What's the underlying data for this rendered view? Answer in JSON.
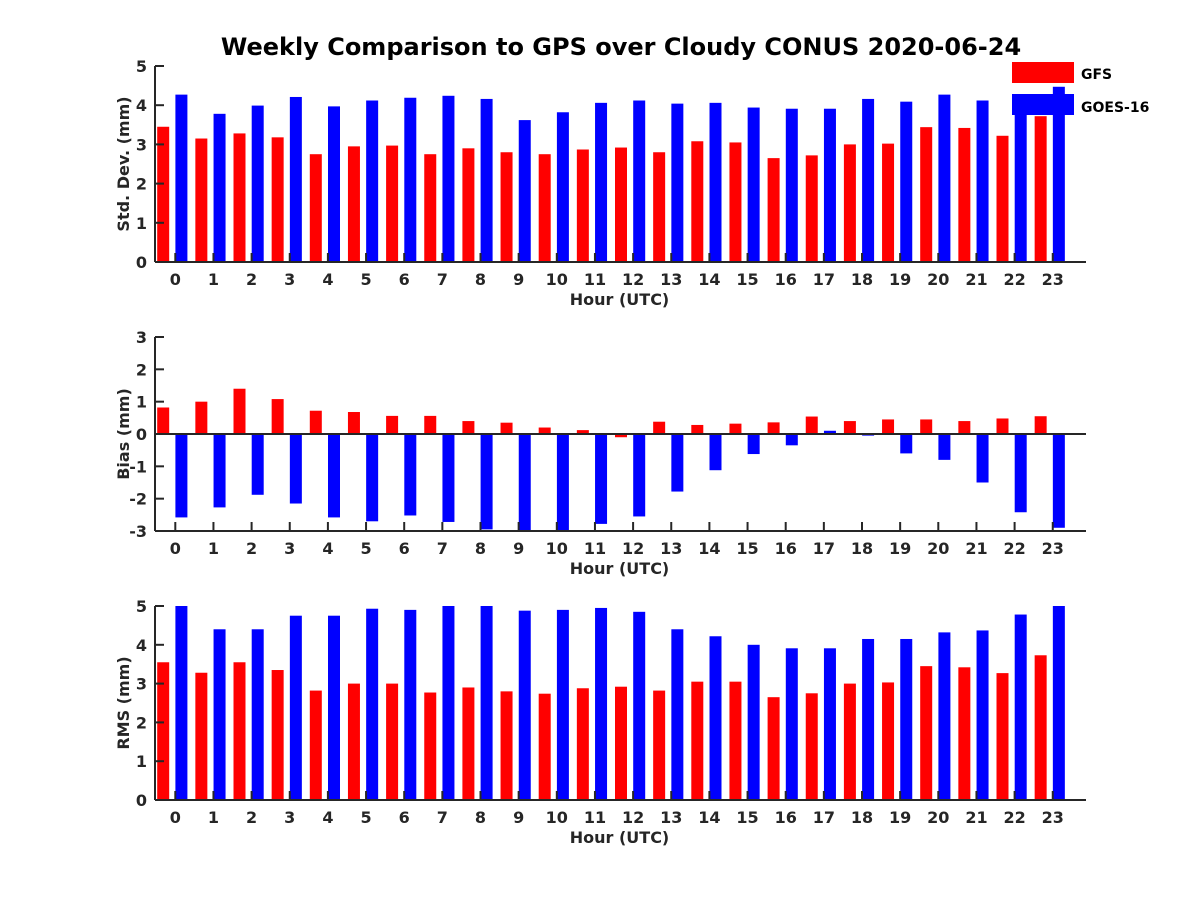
{
  "chart_data": {
    "title": "Weekly Comparison to GPS over Cloudy CONUS 2020-06-24",
    "colors": {
      "GFS": "#ff0000",
      "GOES-16": "#0000ff"
    },
    "legend": {
      "placement": "top-right",
      "entries": [
        "GFS",
        "GOES-16"
      ]
    },
    "grid": false,
    "panels": [
      {
        "type": "bar",
        "xlabel": "Hour (UTC)",
        "ylabel": "Std. Dev. (mm)",
        "ylim": [
          0,
          5
        ],
        "yticks": [
          0,
          1,
          2,
          3,
          4,
          5
        ],
        "categories": [
          "0",
          "1",
          "2",
          "3",
          "4",
          "5",
          "6",
          "7",
          "8",
          "9",
          "10",
          "11",
          "12",
          "13",
          "14",
          "15",
          "16",
          "17",
          "18",
          "19",
          "20",
          "21",
          "22",
          "23"
        ],
        "series": [
          {
            "name": "GFS",
            "values": [
              3.45,
              3.15,
              3.28,
              3.18,
              2.75,
              2.95,
              2.97,
              2.75,
              2.9,
              2.8,
              2.75,
              2.87,
              2.92,
              2.8,
              3.08,
              3.05,
              2.65,
              2.72,
              3.0,
              3.02,
              3.44,
              3.42,
              3.22,
              3.72
            ]
          },
          {
            "name": "GOES-16",
            "values": [
              4.27,
              3.78,
              3.99,
              4.21,
              3.97,
              4.12,
              4.19,
              4.24,
              4.16,
              3.62,
              3.82,
              4.06,
              4.12,
              4.04,
              4.06,
              3.94,
              3.91,
              3.91,
              4.16,
              4.09,
              4.27,
              4.12,
              4.08,
              4.47
            ]
          }
        ]
      },
      {
        "type": "bar",
        "xlabel": "Hour (UTC)",
        "ylabel": "Bias (mm)",
        "ylim": [
          -3,
          3
        ],
        "yticks": [
          -3,
          -2,
          -1,
          0,
          1,
          2,
          3
        ],
        "categories": [
          "0",
          "1",
          "2",
          "3",
          "4",
          "5",
          "6",
          "7",
          "8",
          "9",
          "10",
          "11",
          "12",
          "13",
          "14",
          "15",
          "16",
          "17",
          "18",
          "19",
          "20",
          "21",
          "22",
          "23"
        ],
        "series": [
          {
            "name": "GFS",
            "values": [
              0.82,
              1.0,
              1.4,
              1.08,
              0.72,
              0.68,
              0.56,
              0.56,
              0.4,
              0.35,
              0.2,
              0.12,
              -0.1,
              0.38,
              0.28,
              0.32,
              0.36,
              0.54,
              0.4,
              0.45,
              0.45,
              0.4,
              0.48,
              0.55
            ]
          },
          {
            "name": "GOES-16",
            "values": [
              -2.58,
              -2.27,
              -1.88,
              -2.15,
              -2.58,
              -2.7,
              -2.52,
              -2.72,
              -2.95,
              -3.0,
              -3.0,
              -2.78,
              -2.55,
              -1.78,
              -1.12,
              -0.62,
              -0.35,
              0.1,
              -0.05,
              -0.6,
              -0.8,
              -1.5,
              -2.42,
              -2.9
            ]
          }
        ]
      },
      {
        "type": "bar",
        "xlabel": "Hour (UTC)",
        "ylabel": "RMS (mm)",
        "ylim": [
          0,
          5
        ],
        "yticks": [
          0,
          1,
          2,
          3,
          4,
          5
        ],
        "categories": [
          "0",
          "1",
          "2",
          "3",
          "4",
          "5",
          "6",
          "7",
          "8",
          "9",
          "10",
          "11",
          "12",
          "13",
          "14",
          "15",
          "16",
          "17",
          "18",
          "19",
          "20",
          "21",
          "22",
          "23"
        ],
        "series": [
          {
            "name": "GFS",
            "values": [
              3.55,
              3.28,
              3.55,
              3.35,
              2.82,
              3.0,
              3.0,
              2.77,
              2.9,
              2.8,
              2.74,
              2.88,
              2.92,
              2.82,
              3.05,
              3.05,
              2.65,
              2.75,
              3.0,
              3.03,
              3.45,
              3.42,
              3.27,
              3.73
            ]
          },
          {
            "name": "GOES-16",
            "values": [
              5.0,
              4.4,
              4.4,
              4.75,
              4.75,
              4.93,
              4.9,
              5.0,
              5.0,
              4.88,
              4.9,
              4.95,
              4.85,
              4.4,
              4.22,
              4.0,
              3.91,
              3.91,
              4.15,
              4.15,
              4.32,
              4.37,
              4.78,
              5.0
            ]
          }
        ]
      }
    ]
  }
}
